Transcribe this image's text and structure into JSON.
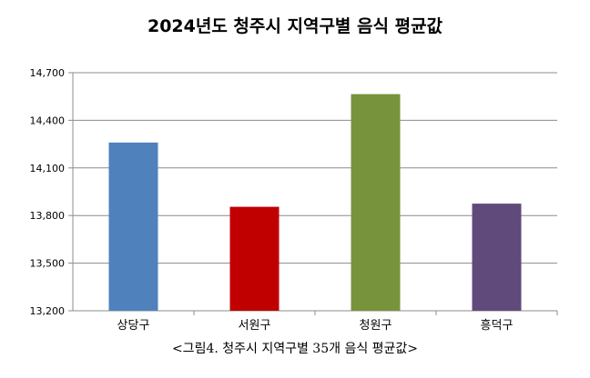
{
  "chart_data": {
    "type": "bar",
    "title": "2024년도 청주시 지역구별 음식 평균값",
    "categories": [
      "상당구",
      "서원구",
      "청원구",
      "흥덕구"
    ],
    "values": [
      14260,
      13855,
      14565,
      13875
    ],
    "ylim": [
      13200,
      14700
    ],
    "yticks": [
      13200,
      13500,
      13800,
      14100,
      14400,
      14700
    ],
    "ytick_labels": [
      "13,200",
      "13,500",
      "13,800",
      "14,100",
      "14,400",
      "14,700"
    ],
    "colors": [
      "#4F81BD",
      "#C00000",
      "#77933C",
      "#604A7B"
    ],
    "grid": true,
    "legend": "none"
  },
  "caption": "<그림4. 청주시 지역구별 35개 음식 평균값>"
}
